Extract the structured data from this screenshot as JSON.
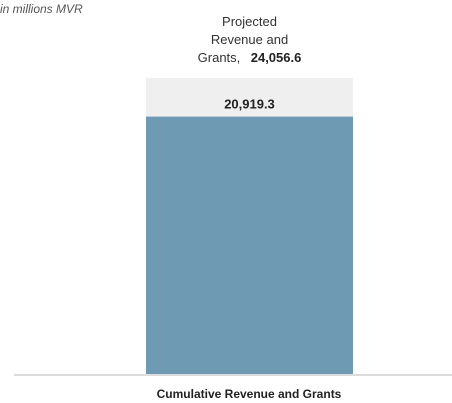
{
  "chart_data": {
    "type": "bar",
    "unit_note": "in millions MVR",
    "categories": [
      "Cumulative Revenue and Grants"
    ],
    "values": [
      20919.3
    ],
    "value_labels": [
      "20,919.3"
    ],
    "projected": {
      "value": 24056.6,
      "label_lines": [
        "Projected",
        "Revenue and",
        "Grants,"
      ],
      "value_label": "24,056.6"
    },
    "ylim": [
      0,
      24056.6
    ],
    "grid": false,
    "colors": {
      "bar": "#6f9ab3",
      "projected": "#efefef",
      "axis": "#b8b8b8"
    }
  }
}
